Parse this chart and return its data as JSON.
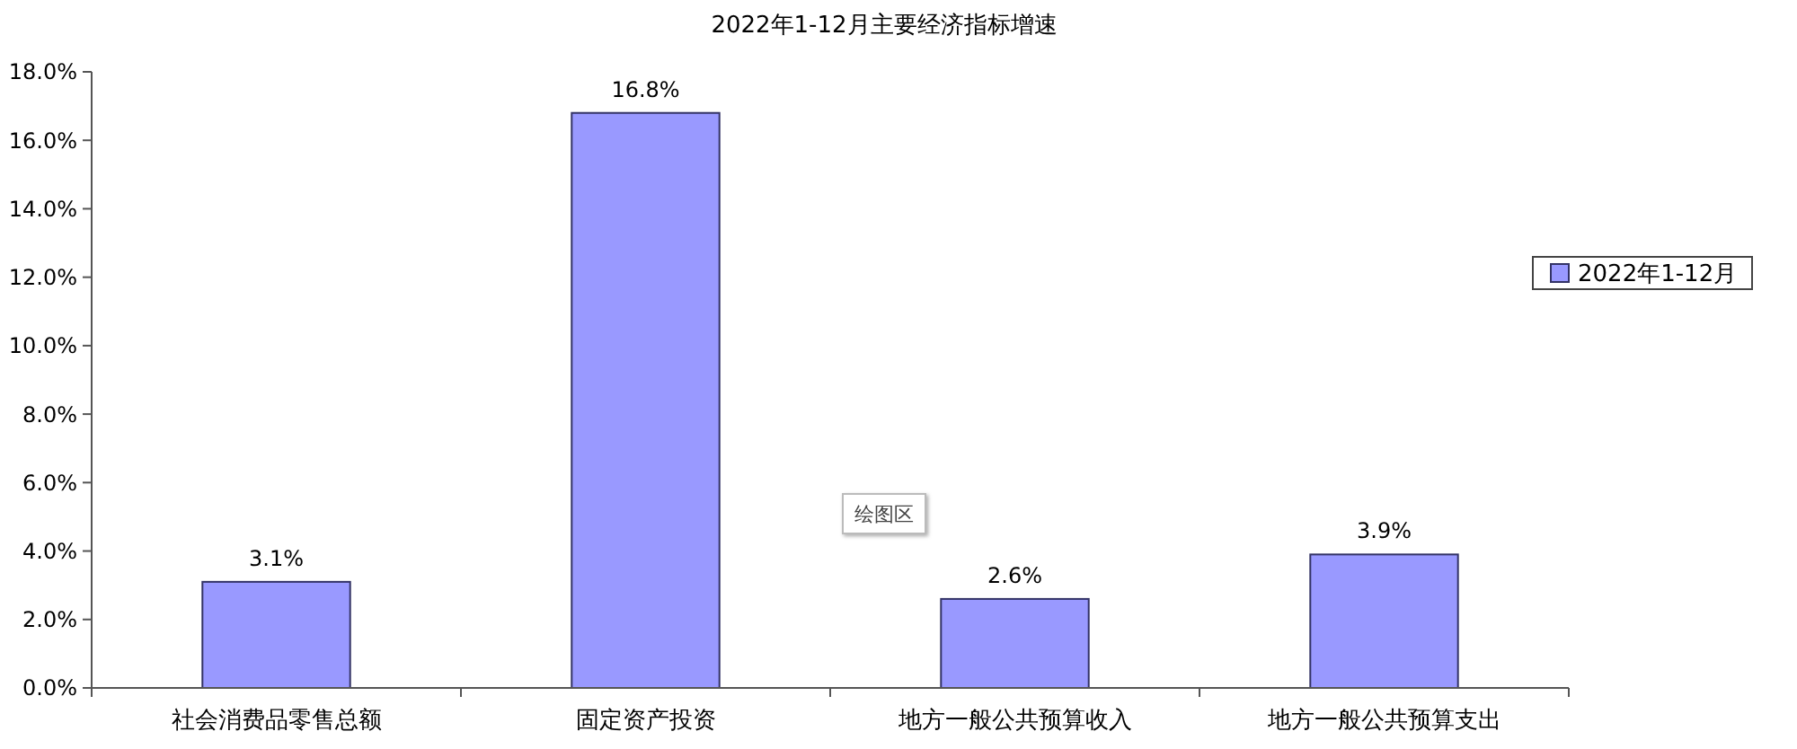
{
  "chart_data": {
    "type": "bar",
    "title": "2022年1-12月主要经济指标增速",
    "categories": [
      "社会消费品零售总额",
      "固定资产投资",
      "地方一般公共预算收入",
      "地方一般公共预算支出"
    ],
    "series": [
      {
        "name": "2022年1-12月",
        "color": "#9999ff",
        "values": [
          3.1,
          16.8,
          2.6,
          3.9
        ],
        "value_labels": [
          "3.1%",
          "16.8%",
          "2.6%",
          "3.9%"
        ]
      }
    ],
    "ylim": [
      0,
      18
    ],
    "yticks": [
      {
        "value": 0,
        "label": "0.0%"
      },
      {
        "value": 2,
        "label": "2.0%"
      },
      {
        "value": 4,
        "label": "4.0%"
      },
      {
        "value": 6,
        "label": "6.0%"
      },
      {
        "value": 8,
        "label": "8.0%"
      },
      {
        "value": 10,
        "label": "10.0%"
      },
      {
        "value": 12,
        "label": "12.0%"
      },
      {
        "value": 14,
        "label": "14.0%"
      },
      {
        "value": 16,
        "label": "16.0%"
      },
      {
        "value": 18,
        "label": "18.0%"
      }
    ],
    "grid": false,
    "legend": "right",
    "annotations": [
      "绘图区"
    ]
  }
}
